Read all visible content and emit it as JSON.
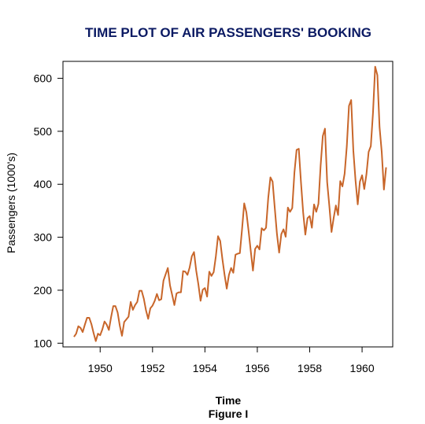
{
  "chart_data": {
    "type": "line",
    "title": "TIME PLOT OF AIR PASSENGERS' BOOKING",
    "xlabel": "Time",
    "caption": "Figure I",
    "ylabel": "Passengers (1000's)",
    "xlim": [
      1948.58,
      1961.17
    ],
    "ylim": [
      93,
      632
    ],
    "x_ticks": [
      1950,
      1952,
      1954,
      1956,
      1958,
      1960
    ],
    "y_ticks": [
      100,
      200,
      300,
      400,
      500,
      600
    ],
    "grid": false,
    "start_year": 1949,
    "frequency": 12,
    "colors": {
      "line": "#c8662a",
      "title": "#0b1a63",
      "axis": "#000000"
    },
    "series": [
      {
        "name": "",
        "values": [
          112,
          118,
          132,
          129,
          121,
          135,
          148,
          148,
          136,
          119,
          104,
          118,
          115,
          126,
          141,
          135,
          125,
          149,
          170,
          170,
          158,
          133,
          114,
          140,
          145,
          150,
          178,
          163,
          172,
          178,
          199,
          199,
          184,
          162,
          146,
          166,
          171,
          180,
          193,
          181,
          183,
          218,
          230,
          242,
          209,
          191,
          172,
          194,
          196,
          196,
          236,
          235,
          229,
          243,
          264,
          272,
          237,
          211,
          180,
          201,
          204,
          188,
          235,
          227,
          234,
          264,
          302,
          293,
          259,
          229,
          203,
          229,
          242,
          233,
          267,
          269,
          270,
          315,
          364,
          347,
          312,
          274,
          237,
          278,
          284,
          277,
          317,
          313,
          318,
          374,
          413,
          405,
          355,
          306,
          271,
          306,
          315,
          301,
          356,
          348,
          355,
          422,
          465,
          467,
          404,
          347,
          305,
          336,
          340,
          318,
          362,
          348,
          363,
          435,
          491,
          505,
          404,
          359,
          310,
          337,
          360,
          342,
          406,
          396,
          420,
          472,
          548,
          559,
          463,
          407,
          362,
          405,
          417,
          391,
          419,
          461,
          472,
          535,
          622,
          606,
          508,
          461,
          390,
          432
        ]
      }
    ]
  }
}
